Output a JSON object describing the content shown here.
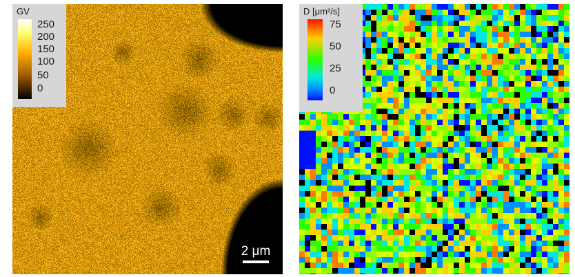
{
  "panels": {
    "gray_value": {
      "legend": {
        "title": "GV",
        "ticks": [
          "250",
          "200",
          "150",
          "100",
          "50",
          "0"
        ]
      },
      "scale_bar": "2 μm"
    },
    "diffusion": {
      "legend": {
        "title": "D [μm²/s]",
        "ticks": [
          "75",
          "50",
          "25",
          "0"
        ]
      }
    }
  },
  "colors": {
    "gv_colormap": [
      "#000000",
      "#a45a00",
      "#ffb000",
      "#ffff6e",
      "#ffffff"
    ],
    "d_colormap": [
      "#0010ff",
      "#0090ff",
      "#00e8e0",
      "#2bff00",
      "#ffd000",
      "#ff1400"
    ],
    "legend_background": "#d6d6d6",
    "background_black": "#000000"
  }
}
